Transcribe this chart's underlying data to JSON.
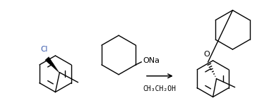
{
  "background_color": "#ffffff",
  "text_color": "#000000",
  "reagent_text": "CH₃CH₂OH",
  "cl_label": "Cl",
  "ona_label": "ONa",
  "o_label": "O",
  "figsize": [
    3.81,
    1.56
  ],
  "dpi": 100
}
